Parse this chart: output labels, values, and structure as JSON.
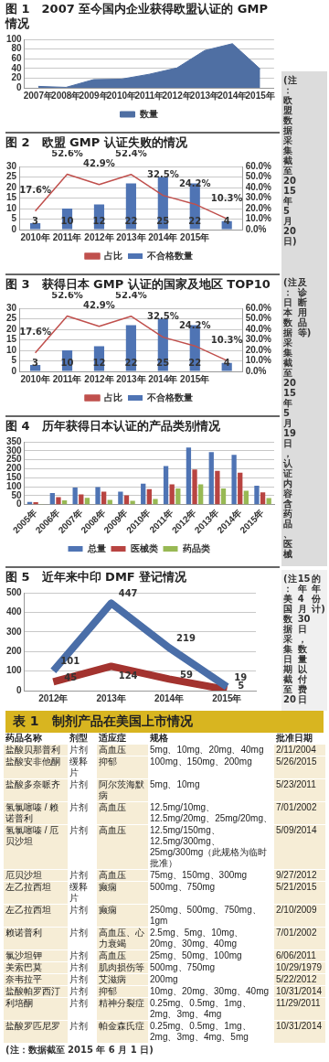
{
  "chart_data": [
    {
      "type": "area",
      "title": "图 1　2007 至今国内企业获得欧盟认证的 GMP 情况",
      "categories": [
        "2007年",
        "2008年",
        "2009年",
        "2010年",
        "2011年",
        "2012年",
        "2013年",
        "2014年",
        "2015年"
      ],
      "series": [
        {
          "name": "数量",
          "color": "#4f6fa3",
          "values": [
            3,
            1,
            17,
            18,
            28,
            41,
            77,
            91,
            39
          ]
        }
      ],
      "ylim": [
        0,
        100
      ],
      "yticks": [
        0,
        20,
        40,
        60,
        80,
        100
      ],
      "grid": "y",
      "legend": "bottom",
      "annotations": [
        "(注：欧盟数据采集截至 2015 年 5 月 20 日)"
      ]
    },
    {
      "type": "bar",
      "title": "图 2　欧盟 GMP 认证失败的情况",
      "categories": [
        "2010年",
        "2011年",
        "2012年",
        "2013年",
        "2014年",
        "2015年",
        null
      ],
      "series": [
        {
          "name": "不合格数量",
          "type": "bar",
          "color": "#4f74b4",
          "values": [
            3,
            10,
            12,
            22,
            25,
            22,
            4
          ],
          "value_labels": [
            "3",
            "10",
            "12",
            "22",
            "25",
            "22",
            "4"
          ]
        },
        {
          "name": "占比",
          "type": "line",
          "axis": "y2",
          "color": "#c0504d",
          "values": [
            17.6,
            52.6,
            42.9,
            52.4,
            32.5,
            24.2,
            10.3
          ],
          "value_labels": [
            "17.6%",
            "52.6%",
            "42.9%",
            "52.4%",
            "32.5%",
            "24.2%",
            "10.3%"
          ]
        }
      ],
      "ylim": [
        0,
        30
      ],
      "yticks": [
        0,
        5,
        10,
        15,
        20,
        25,
        30
      ],
      "y2lim": [
        0,
        60
      ],
      "y2ticks": [
        {
          "value": 0,
          "label": "0.0%"
        },
        {
          "value": 10,
          "label": "10.0%"
        },
        {
          "value": 20,
          "label": "20.0%"
        },
        {
          "value": 30,
          "label": "30.0%"
        },
        {
          "value": 40,
          "label": "40.0%"
        },
        {
          "value": 50,
          "label": "50.0%"
        },
        {
          "value": 60,
          "label": "60.0%"
        }
      ],
      "grid": "y",
      "legend": "bottom",
      "marker": "none"
    },
    {
      "type": "bar",
      "title": "图 3　获得日本 GMP 认证的国家及地区 TOP10",
      "categories": [
        "2010年",
        "2011年",
        "2012年",
        "2013年",
        "2014年",
        "2015年",
        null
      ],
      "series": [
        {
          "name": "不合格数量",
          "type": "bar",
          "color": "#4f74b4",
          "values": [
            3,
            10,
            12,
            22,
            25,
            22,
            4
          ],
          "value_labels": [
            "3",
            "10",
            "12",
            "22",
            "25",
            "22",
            "4"
          ]
        },
        {
          "name": "占比",
          "type": "line",
          "axis": "y2",
          "color": "#c0504d",
          "values": [
            17.6,
            52.6,
            42.9,
            52.4,
            32.5,
            24.2,
            10.3
          ],
          "value_labels": [
            "17.6%",
            "52.6%",
            "42.9%",
            "52.4%",
            "32.5%",
            "24.2%",
            "10.3%"
          ]
        }
      ],
      "ylim": [
        0,
        30
      ],
      "yticks": [
        0,
        5,
        10,
        15,
        20,
        25,
        30
      ],
      "y2lim": [
        0,
        60
      ],
      "y2ticks": [
        {
          "value": 0,
          "label": "0.0%"
        },
        {
          "value": 10,
          "label": "10.0%"
        },
        {
          "value": 20,
          "label": "20.0%"
        },
        {
          "value": 30,
          "label": "30.0%"
        },
        {
          "value": 40,
          "label": "40.0%"
        },
        {
          "value": 50,
          "label": "50.0%"
        },
        {
          "value": 60,
          "label": "60.0%"
        }
      ],
      "grid": "y",
      "legend": "bottom",
      "marker": "none",
      "annotations": [
        "(注：日本数据采集截至 2015 年 5 月 19 日，认证内容含药品、医械及诊断用品等)"
      ]
    },
    {
      "type": "bar",
      "title": "图 4　历年获得日本认证的产品类别情况",
      "categories": [
        "2005年",
        "2006年",
        "2007年",
        "2008年",
        "2009年",
        "2010年",
        "2011年",
        "2012年",
        "2013年",
        "2014年",
        "2015年"
      ],
      "series": [
        {
          "name": "总量",
          "color": "#4f74b4",
          "values": [
            15,
            65,
            95,
            98,
            72,
            117,
            215,
            318,
            293,
            277,
            105
          ]
        },
        {
          "name": "医械类",
          "color": "#b84441",
          "values": [
            14,
            42,
            57,
            73,
            52,
            86,
            113,
            196,
            188,
            178,
            68
          ]
        },
        {
          "name": "药品类",
          "color": "#98b954",
          "values": [
            3,
            24,
            38,
            27,
            22,
            32,
            90,
            113,
            90,
            78,
            37
          ]
        }
      ],
      "ylim": [
        0,
        350
      ],
      "yticks": [
        0,
        50,
        100,
        150,
        200,
        250,
        300,
        350
      ],
      "grid": "y",
      "legend": "bottom"
    },
    {
      "type": "line",
      "title": "图 5　近年来中印 DMF 登记情况",
      "categories": [
        "2012年",
        "2013年",
        "2014年",
        "2015年"
      ],
      "series": [
        {
          "color": "#4a6ea8",
          "values": [
            101,
            447,
            219,
            19
          ]
        },
        {
          "color": "#a3332f",
          "values": [
            45,
            124,
            59,
            5
          ]
        }
      ],
      "ylim": [
        0,
        500
      ],
      "yticks": [
        0,
        100,
        200,
        300,
        400,
        500
      ],
      "grid": "y",
      "data_labels": true,
      "marker": "none",
      "annotations": [
        "(注：美国数据采集日期截至 2015 年 4 月 30 日，数量以付费日的年份计)"
      ]
    },
    {
      "type": "other",
      "title": "表 1　制剂产品在美国上市情况",
      "categories": [
        "药品名称",
        "剂型",
        "适应症",
        "规格",
        "批准日期"
      ],
      "cell_labels": [
        [
          "盐酸贝那普利",
          "片剂",
          "高血压",
          "5mg、10mg、20mg、40mg",
          "2/11/2004"
        ],
        [
          "盐酸安非他酮",
          "缓释片",
          "抑郁",
          "100mg、150mg、200mg",
          "5/26/2015"
        ],
        [
          "盐酸多奈哌齐",
          "片剂",
          "阿尔茨海默病",
          "5mg、10mg",
          "5/23/2011"
        ],
        [
          "氢氯噻嗪 / 赖诺普利",
          "片剂",
          "高血压",
          "12.5mg/10mg、12.5mg/20mg、25mg/20mg、",
          "7/01/2002"
        ],
        [
          "氢氯噻嗪 / 厄贝沙坦",
          "片剂",
          "高血压",
          "12.5mg/150mg、12.5mg/300mg、25mg/300mg（此规格为临时批准）",
          "5/09/2014"
        ],
        [
          "厄贝沙坦",
          "片剂",
          "高血压",
          "75mg、150mg、300mg",
          "9/27/2012"
        ],
        [
          "左乙拉西坦",
          "缓释片",
          "癫痫",
          "500mg、750mg",
          "5/21/2015"
        ],
        [
          "左乙拉西坦",
          "片剂",
          "癫痫",
          "250mg、500mg、750mg、1gm",
          "2/10/2009"
        ],
        [
          "赖诺普利",
          "片剂",
          "高血压、心力衰竭",
          "2.5mg、5mg、10mg、20mg、30mg、40mg",
          "7/01/2002"
        ],
        [
          "氯沙坦钾",
          "片剂",
          "高血压",
          "25mg、50mg、100mg",
          "6/06/2011"
        ],
        [
          "美索巴莫",
          "片剂",
          "肌肉损伤等",
          "500mg、750mg",
          "10/29/1979"
        ],
        [
          "奈韦拉平",
          "片剂",
          "艾滋病",
          "200mg",
          "5/22/2012"
        ],
        [
          "盐酸帕罗西汀",
          "片剂",
          "抑郁",
          "10mg、20mg、30mg、40mg",
          "10/31/2014"
        ],
        [
          "利培酮",
          "片剂",
          "精神分裂症",
          "0.25mg、0.5mg、1mg、2mg、3mg、4mg",
          "11/29/2011"
        ],
        [
          "盐酸罗匹尼罗",
          "片剂",
          "帕金森氏症",
          "0.25mg、0.5mg、1mg、2mg、3mg、4mg、5mg",
          "10/31/2014"
        ]
      ],
      "annotations": [
        "(注：数据截至 2015 年 6 月 1 日)"
      ]
    }
  ]
}
